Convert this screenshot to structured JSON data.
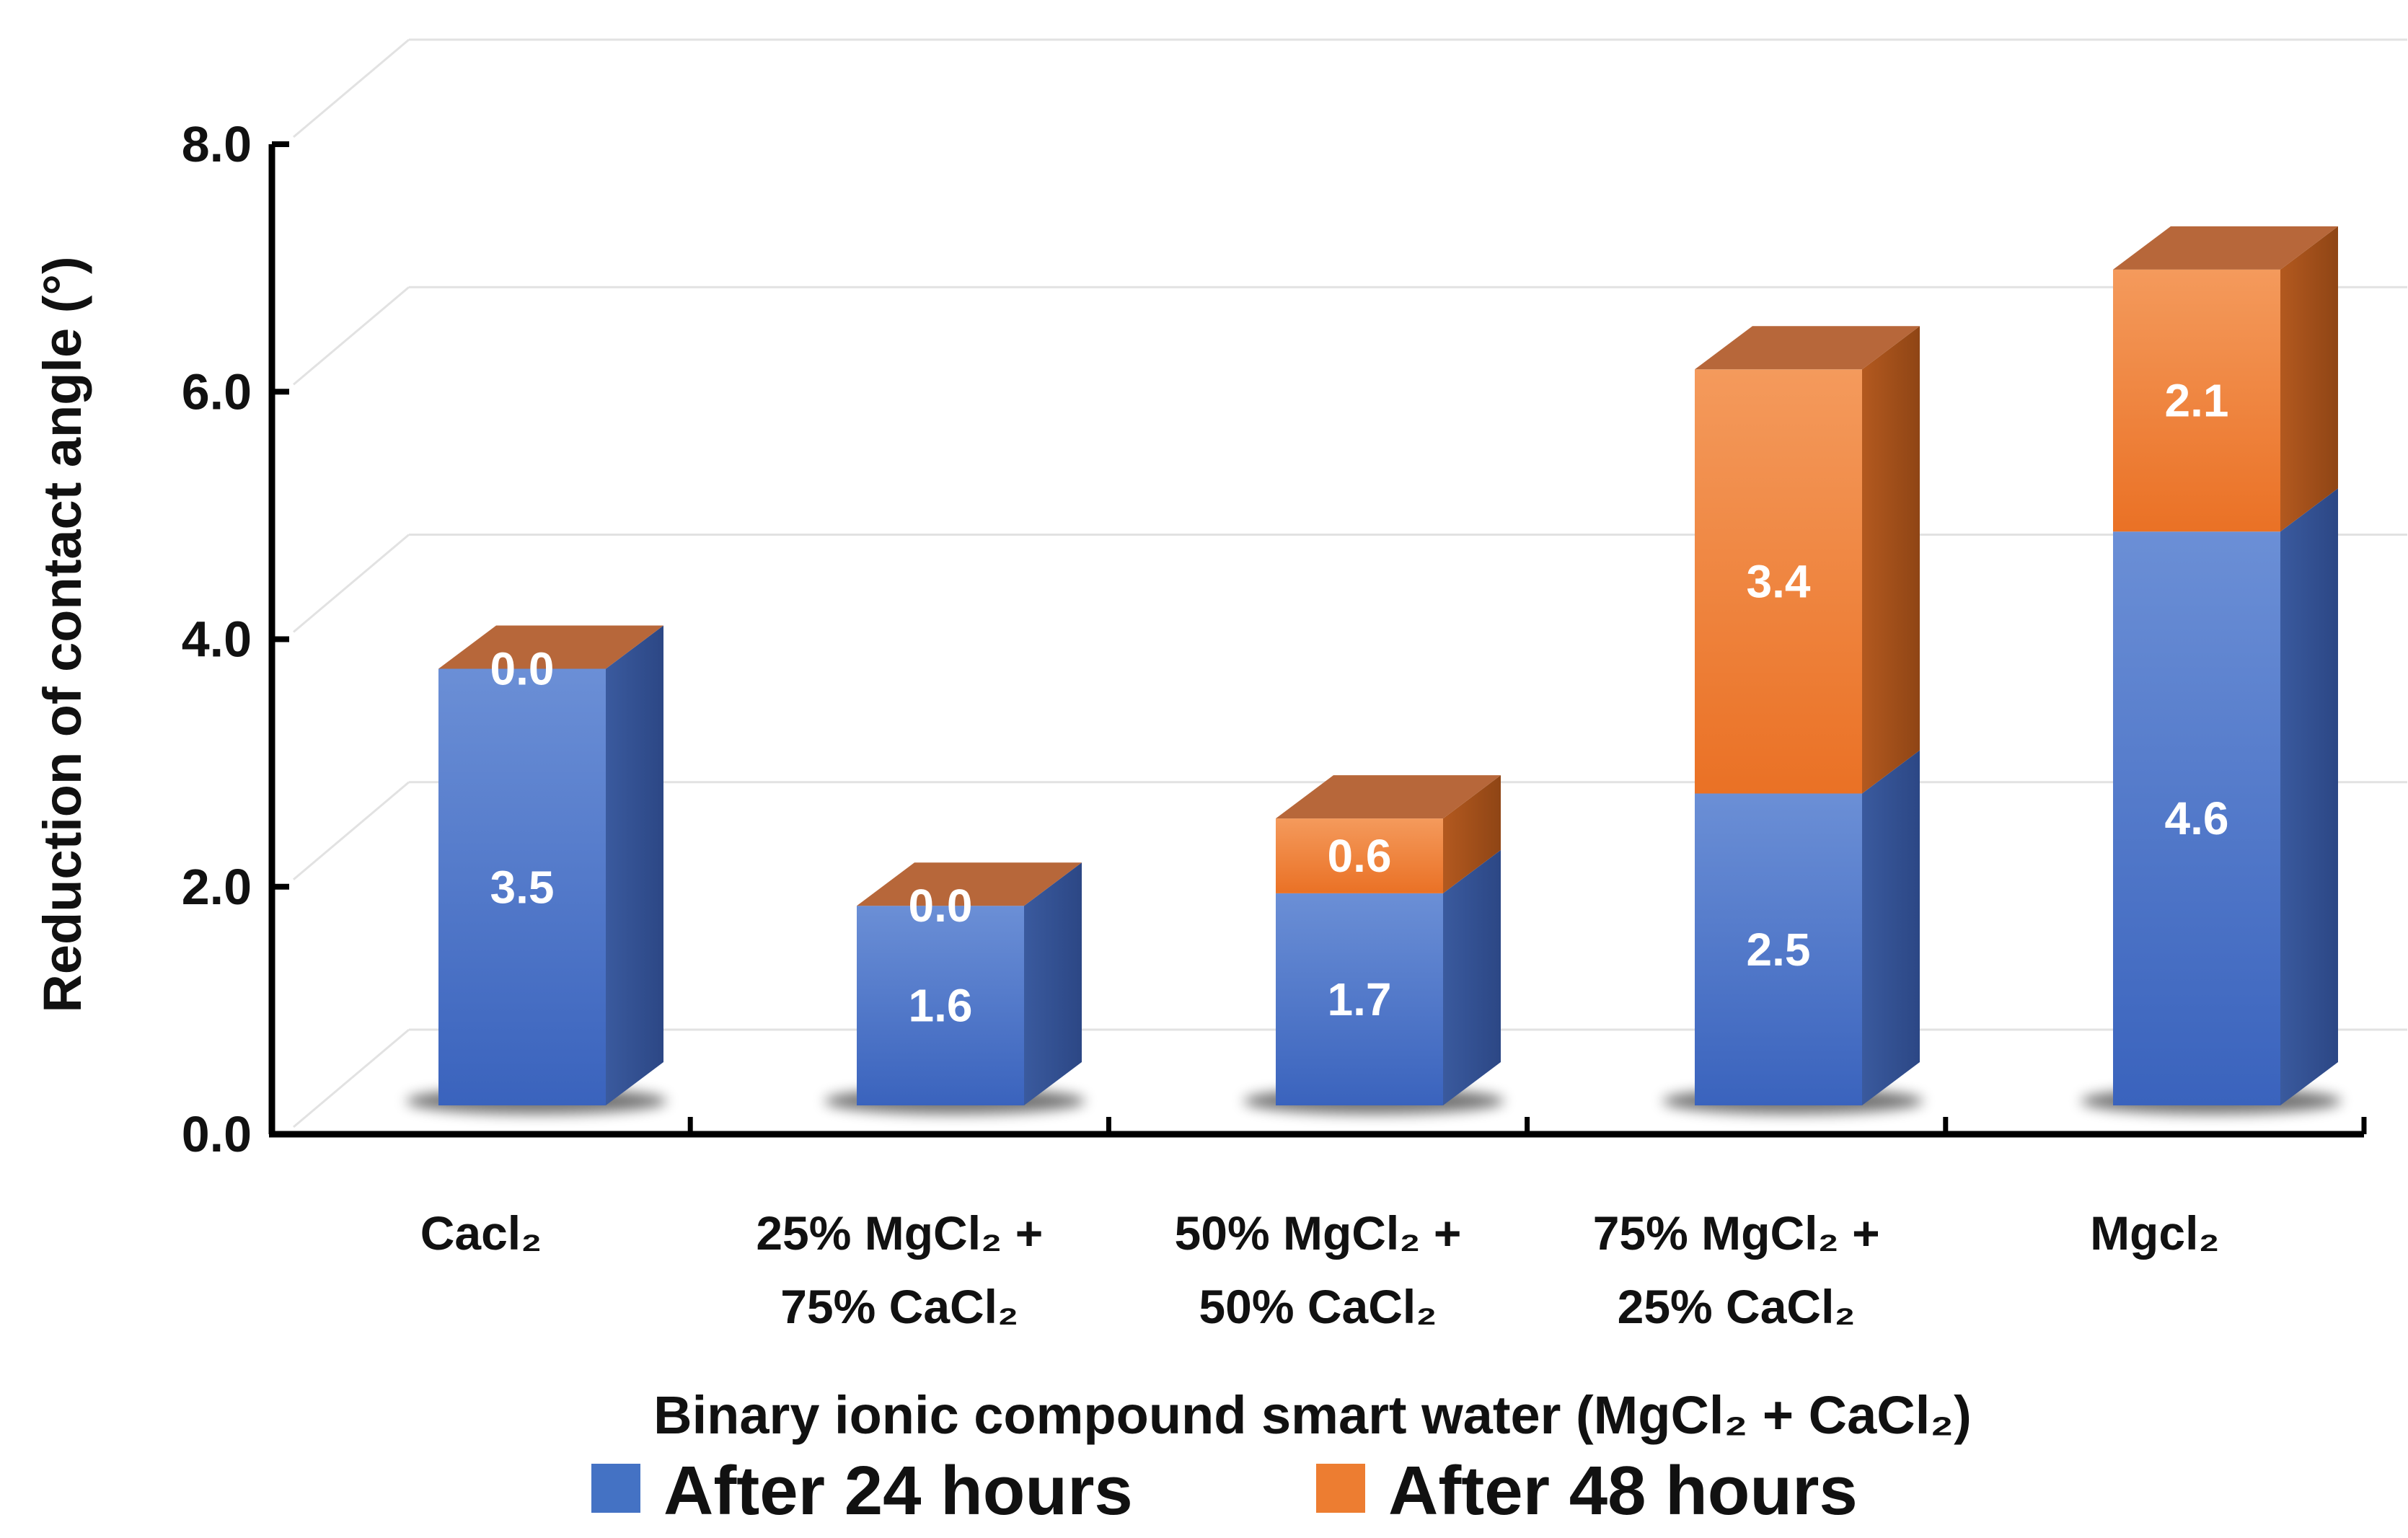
{
  "chart_data": {
    "type": "bar",
    "stacked": true,
    "style": "3d",
    "title": "",
    "xlabel": "Binary ionic compound smart water (MgCl₂ + CaCl₂)",
    "ylabel": "Reduction of contact angle (°)",
    "ylim": [
      0,
      8
    ],
    "yticks": [
      "0.0",
      "2.0",
      "4.0",
      "6.0",
      "8.0"
    ],
    "grid": true,
    "legend_position": "bottom",
    "categories": [
      [
        "Cacl₂"
      ],
      [
        "25% MgCl₂ +",
        "75% CaCl₂"
      ],
      [
        "50% MgCl₂ +",
        "50% CaCl₂"
      ],
      [
        "75% MgCl₂ +",
        "25% CaCl₂"
      ],
      [
        "Mgcl₂"
      ]
    ],
    "series": [
      {
        "name": "After 24 hours",
        "color": "#4472C4",
        "values": [
          3.5,
          1.6,
          1.7,
          2.5,
          4.6
        ],
        "labels": [
          "3.5",
          "1.6",
          "1.7",
          "2.5",
          "4.6"
        ]
      },
      {
        "name": "After 48 hours",
        "color": "#ED7D31",
        "values": [
          0.0,
          0.0,
          0.6,
          3.4,
          2.1
        ],
        "labels": [
          "0.0",
          "0.0",
          "0.6",
          "3.4",
          "2.1"
        ]
      }
    ]
  }
}
